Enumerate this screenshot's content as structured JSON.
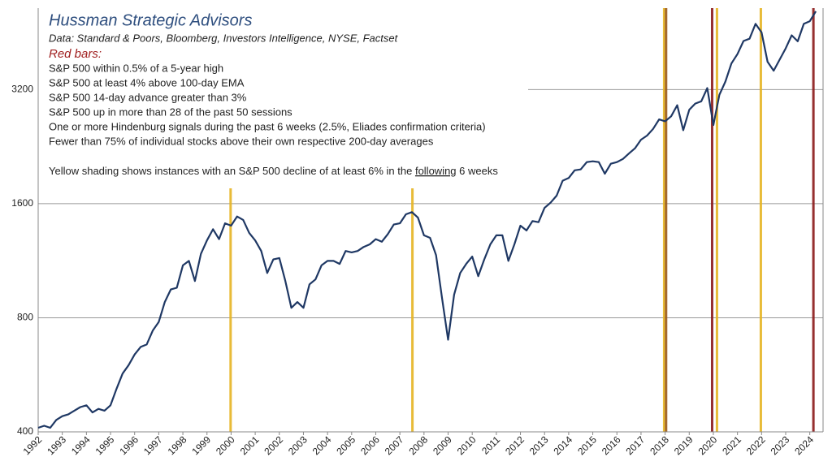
{
  "chart_data": {
    "type": "line",
    "title": "Hussman Strategic Advisors",
    "subtitle": "Data: Standard & Poors, Bloomberg, Investors Intelligence, NYSE, Factset",
    "legend_heading": "Red bars:",
    "criteria": [
      "S&P 500 within 0.5% of a 5-year high",
      "S&P 500 at least 4% above 100-day EMA",
      "S&P 500 14-day advance greater than 3%",
      "S&P 500 up in more than 28 of the past 50 sessions",
      "One or more Hindenburg signals during the past 6 weeks (2.5%, Eliades confirmation criteria)",
      "Fewer than 75% of individual stocks above their own respective 200-day averages"
    ],
    "note": {
      "before": "Yellow shading shows instances with an S&P 500 decline of at least 6% in the ",
      "underlined": "following",
      "after": " 6 weeks"
    },
    "log_scale": true,
    "grid": true,
    "xlim": [
      1992,
      2024.55
    ],
    "ylim": [
      400,
      5250
    ],
    "yticks": [
      400,
      800,
      1600,
      3200
    ],
    "xticks": [
      1992,
      1993,
      1994,
      1995,
      1996,
      1997,
      1998,
      1999,
      2000,
      2001,
      2002,
      2003,
      2004,
      2005,
      2006,
      2007,
      2008,
      2009,
      2010,
      2011,
      2012,
      2013,
      2014,
      2015,
      2016,
      2017,
      2018,
      2019,
      2020,
      2021,
      2022,
      2023,
      2024
    ],
    "x": [
      1992,
      1992.25,
      1992.5,
      1992.75,
      1993,
      1993.25,
      1993.5,
      1993.75,
      1994,
      1994.25,
      1994.5,
      1994.75,
      1995,
      1995.25,
      1995.5,
      1995.75,
      1996,
      1996.25,
      1996.5,
      1996.75,
      1997,
      1997.25,
      1997.5,
      1997.75,
      1998,
      1998.25,
      1998.5,
      1998.75,
      1999,
      1999.25,
      1999.5,
      1999.75,
      2000,
      2000.25,
      2000.5,
      2000.75,
      2001,
      2001.25,
      2001.5,
      2001.75,
      2002,
      2002.25,
      2002.5,
      2002.75,
      2003,
      2003.25,
      2003.5,
      2003.75,
      2004,
      2004.25,
      2004.5,
      2004.75,
      2005,
      2005.25,
      2005.5,
      2005.75,
      2006,
      2006.25,
      2006.5,
      2006.75,
      2007,
      2007.25,
      2007.5,
      2007.75,
      2008,
      2008.25,
      2008.5,
      2008.75,
      2009,
      2009.25,
      2009.5,
      2009.75,
      2010,
      2010.25,
      2010.5,
      2010.75,
      2011,
      2011.25,
      2011.5,
      2011.75,
      2012,
      2012.25,
      2012.5,
      2012.75,
      2013,
      2013.25,
      2013.5,
      2013.75,
      2014,
      2014.25,
      2014.5,
      2014.75,
      2015,
      2015.25,
      2015.5,
      2015.75,
      2016,
      2016.25,
      2016.5,
      2016.75,
      2017,
      2017.25,
      2017.5,
      2017.75,
      2018,
      2018.25,
      2018.5,
      2018.75,
      2019,
      2019.25,
      2019.5,
      2019.75,
      2020,
      2020.25,
      2020.5,
      2020.75,
      2021,
      2021.25,
      2021.5,
      2021.75,
      2022,
      2022.25,
      2022.5,
      2022.75,
      2023,
      2023.25,
      2023.5,
      2023.75,
      2024,
      2024.25
    ],
    "series": [
      {
        "name": "S&P 500",
        "color": "#1f3864",
        "values": [
          410,
          415,
          410,
          430,
          440,
          445,
          455,
          465,
          470,
          450,
          460,
          455,
          470,
          520,
          570,
          600,
          640,
          670,
          680,
          740,
          780,
          880,
          950,
          960,
          1100,
          1130,
          1000,
          1180,
          1280,
          1370,
          1290,
          1420,
          1400,
          1480,
          1450,
          1340,
          1280,
          1200,
          1050,
          1140,
          1150,
          1000,
          850,
          880,
          850,
          980,
          1010,
          1100,
          1130,
          1130,
          1110,
          1200,
          1190,
          1200,
          1230,
          1250,
          1290,
          1270,
          1330,
          1410,
          1420,
          1500,
          1520,
          1470,
          1320,
          1300,
          1170,
          900,
          700,
          920,
          1050,
          1110,
          1160,
          1030,
          1140,
          1250,
          1320,
          1320,
          1130,
          1250,
          1400,
          1360,
          1440,
          1430,
          1560,
          1610,
          1680,
          1840,
          1870,
          1960,
          1970,
          2060,
          2070,
          2060,
          1920,
          2040,
          2060,
          2100,
          2170,
          2240,
          2360,
          2420,
          2520,
          2670,
          2640,
          2720,
          2910,
          2500,
          2830,
          2940,
          2980,
          3230,
          2580,
          3100,
          3360,
          3750,
          3970,
          4300,
          4360,
          4770,
          4530,
          3790,
          3590,
          3840,
          4110,
          4450,
          4290,
          4770,
          4850,
          5150
        ]
      }
    ],
    "bars": [
      {
        "x": 1999.98,
        "color": "#e6b422"
      },
      {
        "x": 2007.52,
        "color": "#e6b422"
      },
      {
        "x": 2017.96,
        "color": "#e6b422"
      },
      {
        "x": 2018.04,
        "color": "#9a5a1a"
      },
      {
        "x": 2019.95,
        "color": "#8b1a1a"
      },
      {
        "x": 2020.15,
        "color": "#e6b422"
      },
      {
        "x": 2021.97,
        "color": "#e6b422"
      },
      {
        "x": 2024.15,
        "color": "#8b1a1a"
      }
    ]
  }
}
